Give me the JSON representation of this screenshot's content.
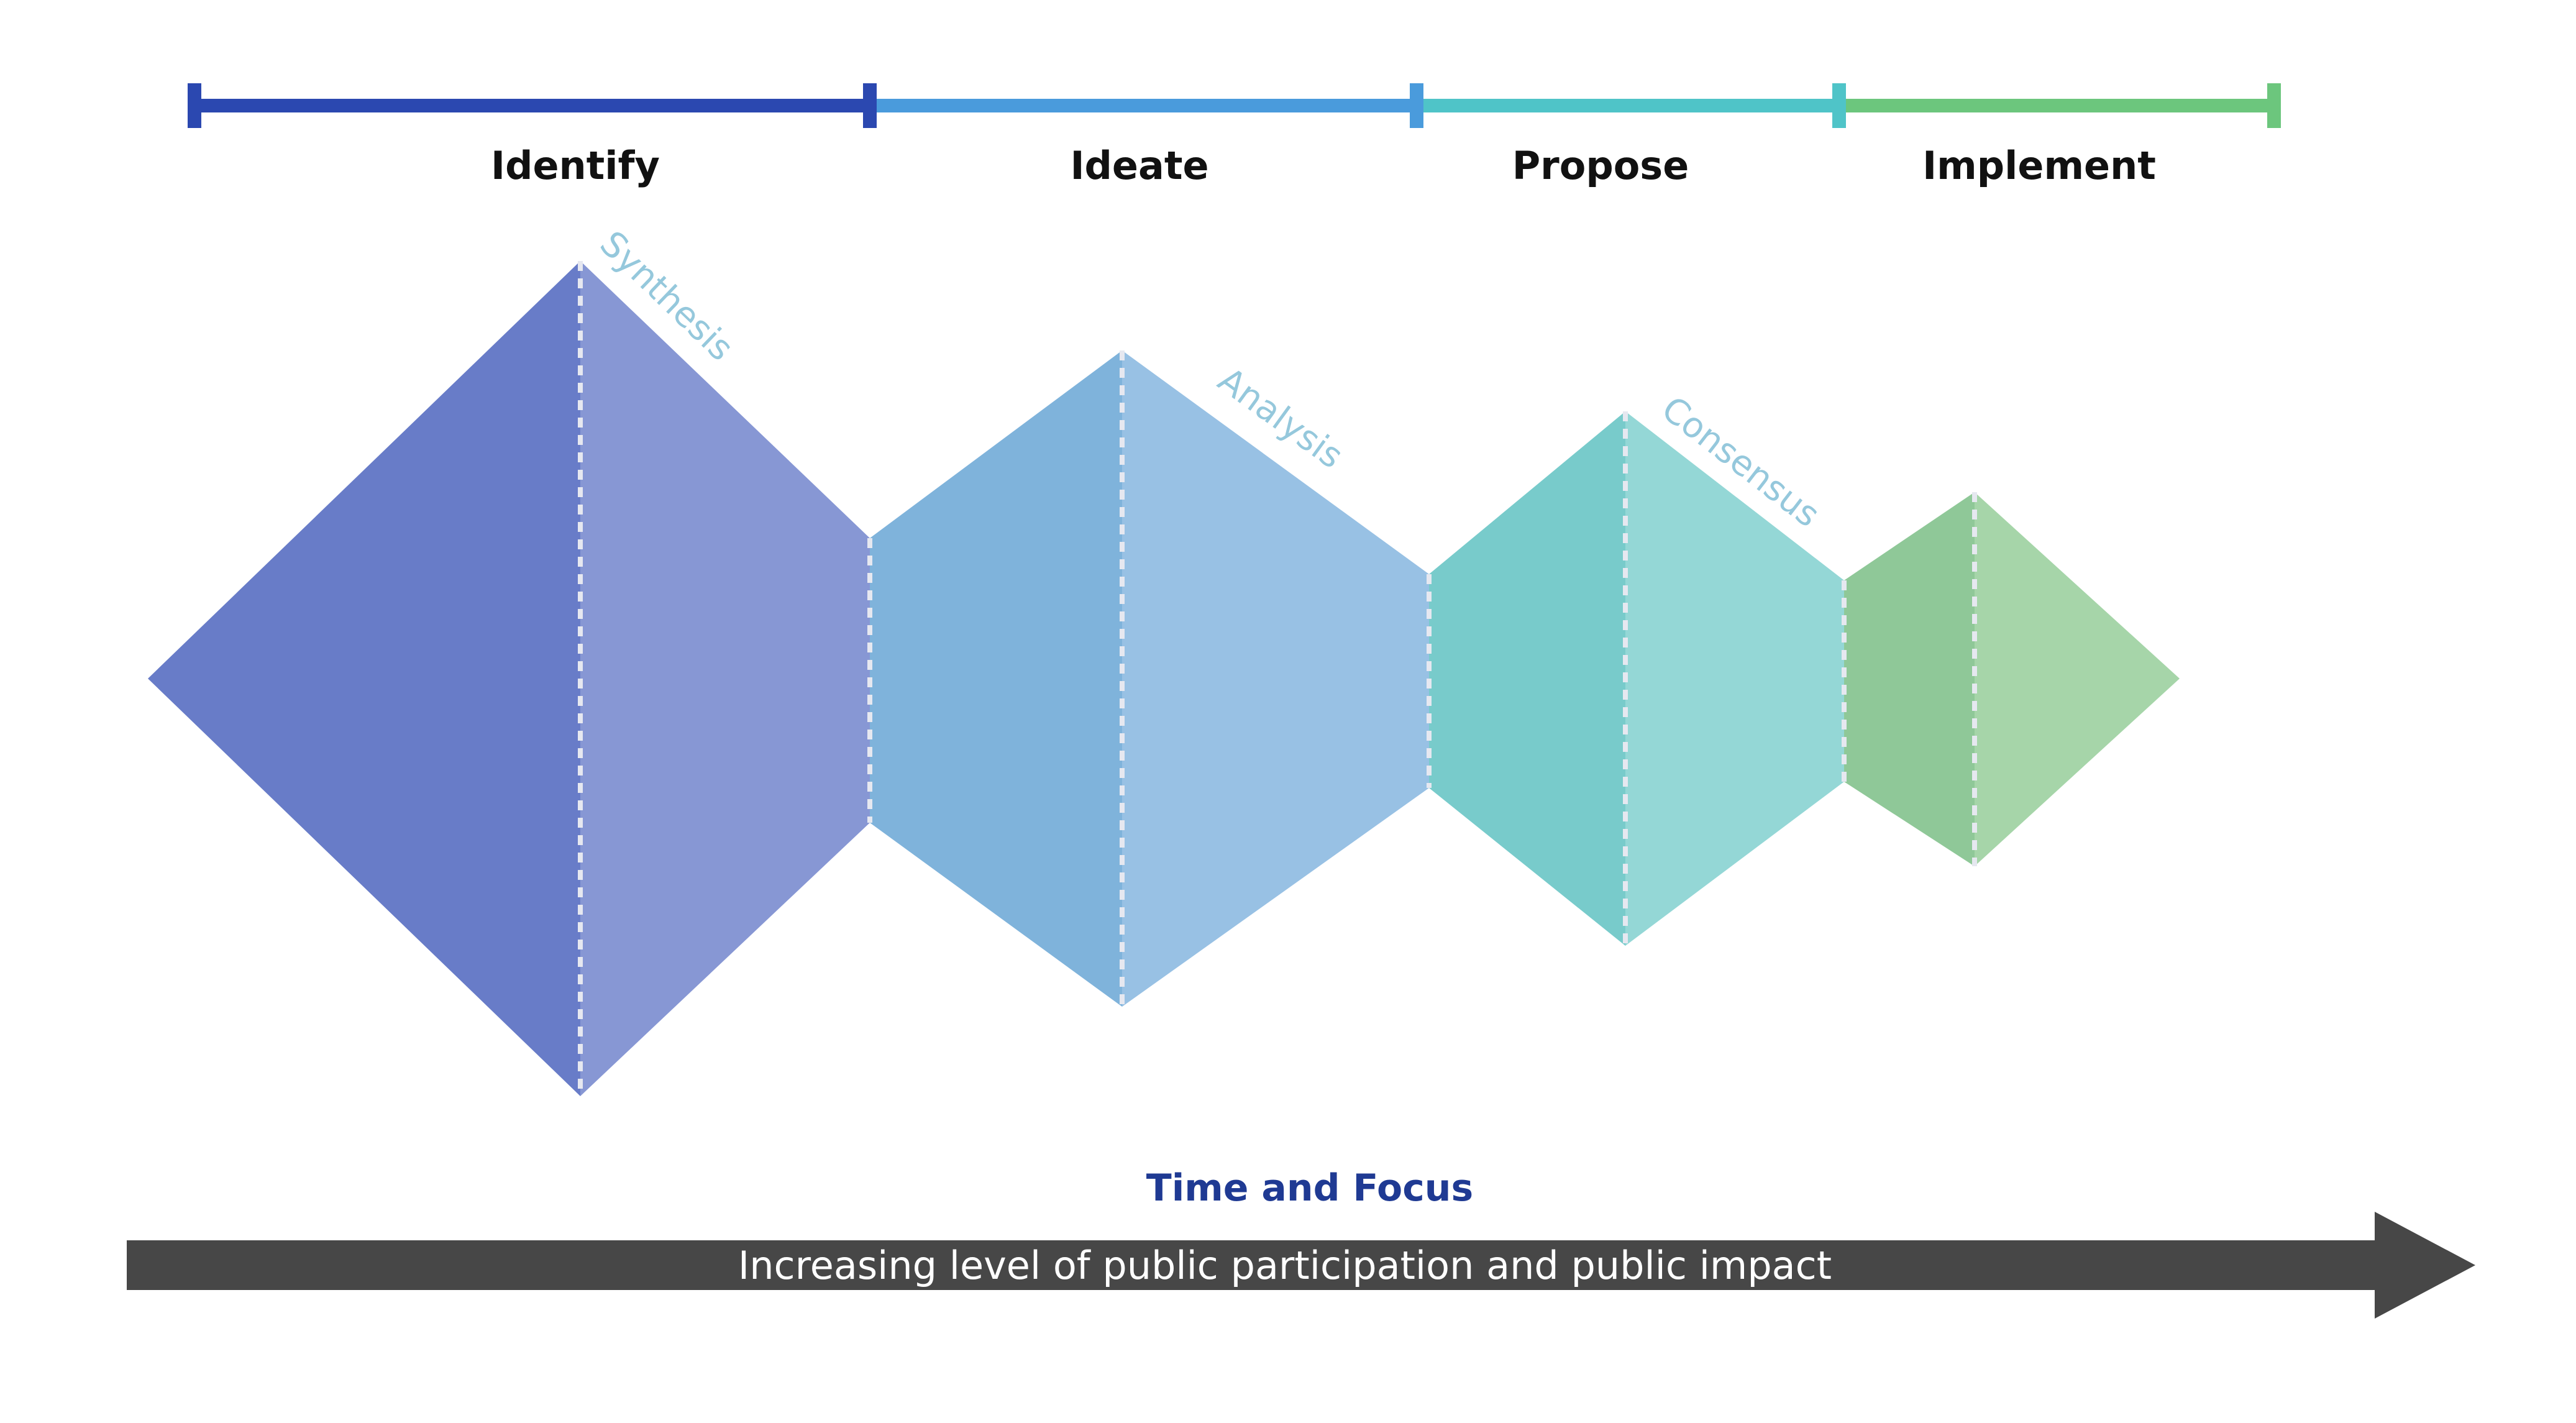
{
  "colors": {
    "identify_bar": "#2b48b0",
    "ideate_bar": "#4a9bdc",
    "propose_bar": "#4fc4c8",
    "implement_bar": "#6cc67d",
    "identify_left": "#687cc8",
    "identify_right": "#8797d4",
    "ideate_left": "#7fb3db",
    "ideate_right": "#98c1e4",
    "propose_left": "#78cbcb",
    "propose_right": "#94d7d6",
    "implement_left": "#8fc898",
    "implement_right": "#a6d5a9",
    "diag_label": "#95c8dc",
    "axis_title": "#1f3a93",
    "arrow": "#474747"
  },
  "phases": [
    {
      "label": "Identify"
    },
    {
      "label": "Ideate"
    },
    {
      "label": "Propose"
    },
    {
      "label": "Implement"
    }
  ],
  "diagonal_labels": [
    "Synthesis",
    "Analysis",
    "Consensus"
  ],
  "axis_title": "Time and Focus",
  "arrow_text": "Increasing level of public participation and public impact"
}
